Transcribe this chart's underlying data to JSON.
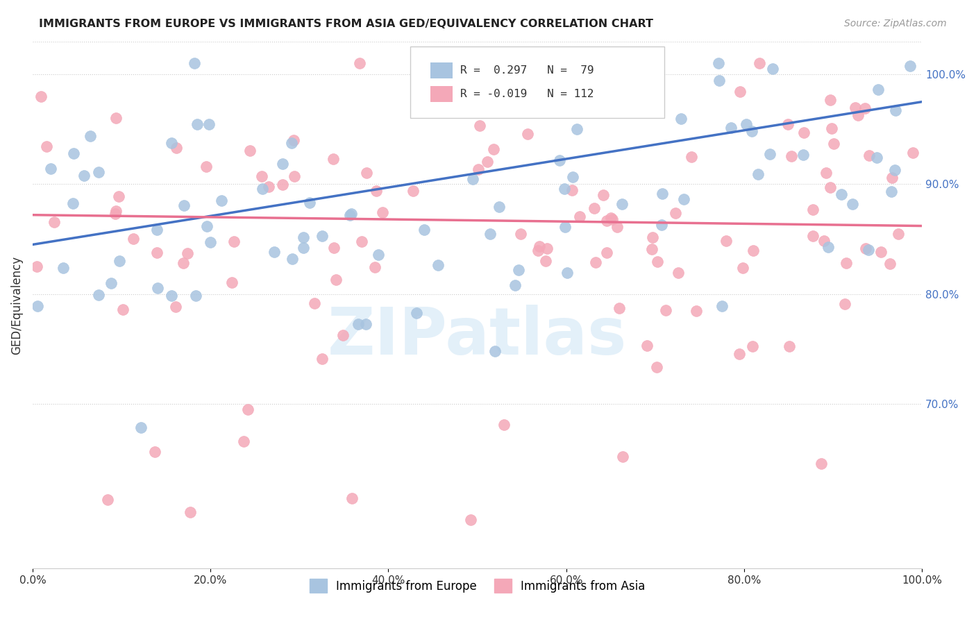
{
  "title": "IMMIGRANTS FROM EUROPE VS IMMIGRANTS FROM ASIA GED/EQUIVALENCY CORRELATION CHART",
  "source": "Source: ZipAtlas.com",
  "ylabel": "GED/Equivalency",
  "right_yticks": [
    "100.0%",
    "90.0%",
    "80.0%",
    "70.0%"
  ],
  "right_ytick_vals": [
    1.0,
    0.9,
    0.8,
    0.7
  ],
  "xlim": [
    0.0,
    1.0
  ],
  "ylim": [
    0.55,
    1.03
  ],
  "blue_R": 0.297,
  "blue_N": 79,
  "pink_R": -0.019,
  "pink_N": 112,
  "blue_color": "#a8c4e0",
  "pink_color": "#f4a8b8",
  "blue_line_color": "#4472c4",
  "pink_line_color": "#e87090",
  "legend_blue_label": "Immigrants from Europe",
  "legend_pink_label": "Immigrants from Asia",
  "blue_trendline_y_start": 0.845,
  "blue_trendline_y_end": 0.975,
  "pink_trendline_y_start": 0.872,
  "pink_trendline_y_end": 0.862,
  "watermark": "ZIPatlas",
  "bg_color": "#ffffff",
  "grid_color": "#cccccc"
}
